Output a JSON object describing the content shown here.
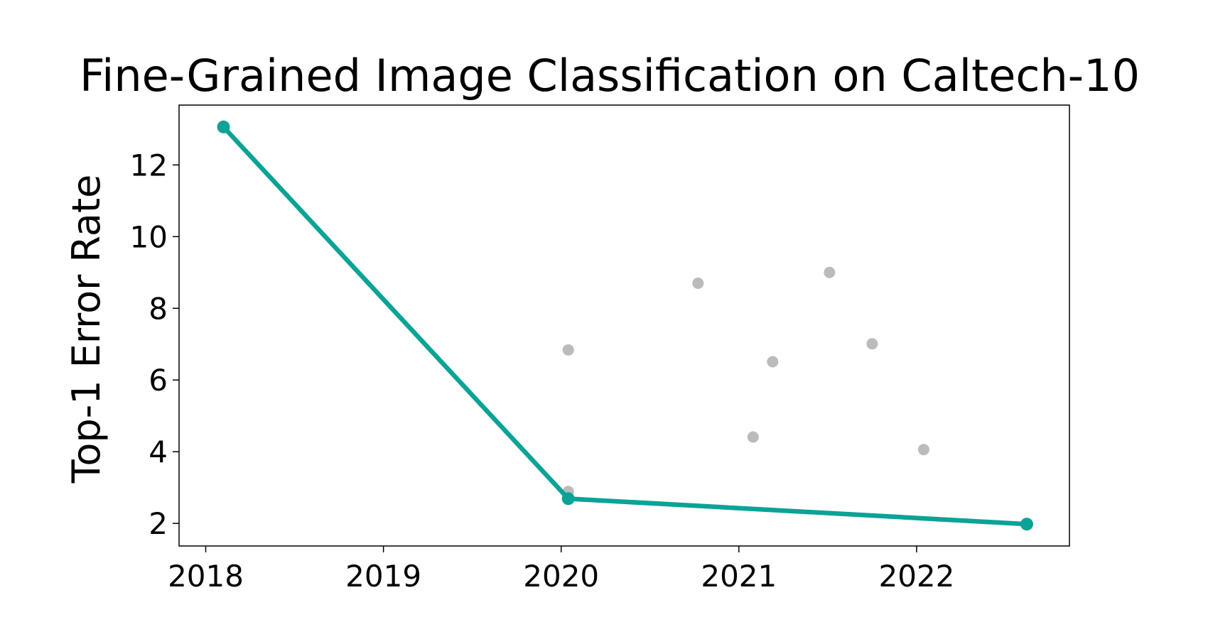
{
  "chart_data": {
    "type": "line",
    "title": "Fine-Grained Image Classification on Caltech-10",
    "y_label": "Top-1 Error Rate",
    "xlim": [
      2017.85,
      2022.86
    ],
    "xticks": [
      2018,
      2019,
      2020,
      2021,
      2022
    ],
    "ylim": [
      1.37,
      13.67
    ],
    "yticks": [
      2,
      4,
      6,
      8,
      10,
      12
    ],
    "series": [
      {
        "color": "#0aa396",
        "style": "line",
        "x": [
          2018.1,
          2020.04,
          2022.62
        ],
        "values": [
          13.06,
          2.69,
          1.98
        ]
      },
      {
        "color": "#bbbbbb",
        "style": "scatter",
        "x": [
          2020.04,
          2020.77,
          2021.51,
          2021.19,
          2021.08,
          2021.75,
          2022.04,
          2020.04
        ],
        "values": [
          6.84,
          8.7,
          9.0,
          6.51,
          4.41,
          7.01,
          4.06,
          2.89
        ]
      }
    ]
  }
}
